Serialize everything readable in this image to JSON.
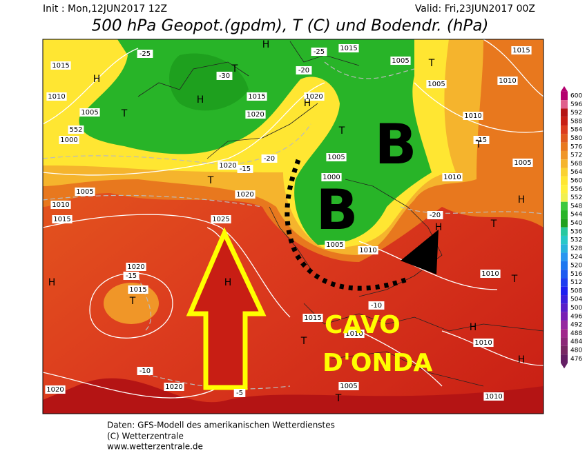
{
  "header": {
    "init": "Init : Mon,12JUN2017 12Z",
    "valid": "Valid: Fri,23JUN2017 00Z",
    "title": "500 hPa Geopot.(gpdm), T (C) und Bodendr. (hPa)"
  },
  "colorbar": {
    "ticks": [
      600,
      596,
      592,
      588,
      584,
      580,
      576,
      572,
      568,
      564,
      560,
      556,
      552,
      548,
      544,
      540,
      536,
      532,
      528,
      524,
      520,
      516,
      512,
      508,
      504,
      500,
      496,
      492,
      488,
      484,
      480,
      476
    ]
  },
  "annotations": {
    "low_1": "B",
    "low_2": "B",
    "trough_line1": "CAVO",
    "trough_line2": "D'ONDA"
  },
  "map_labels": [
    "1015",
    "1010",
    "H",
    "1005",
    "T",
    "552",
    "1000",
    "1005",
    "1010",
    "1015",
    "H",
    "1020",
    "-15",
    "1015",
    "T",
    "-10",
    "1020",
    "1020",
    "1025",
    "H",
    "1020",
    "T",
    "1020",
    "-15",
    "-20",
    "1015",
    "1020",
    "-25",
    "-30",
    "T",
    "H",
    "H",
    "1015",
    "-25",
    "-20",
    "1005",
    "T",
    "1005",
    "1010",
    "1015",
    "1010",
    "-15",
    "T",
    "1005",
    "1010",
    "T",
    "H",
    "H",
    "-20",
    "1010",
    "1005",
    "1010",
    "T",
    "H",
    "1010",
    "H",
    "1010",
    "1005",
    "T",
    "-10",
    "1015",
    "1010",
    "T",
    "-5",
    "1000",
    "1005",
    "T",
    "1020",
    "H"
  ],
  "footer": [
    "Daten: GFS-Modell des amerikanischen Wetterdienstes",
    "(C) Wetterzentrale",
    "www.wetterzentrale.de"
  ]
}
